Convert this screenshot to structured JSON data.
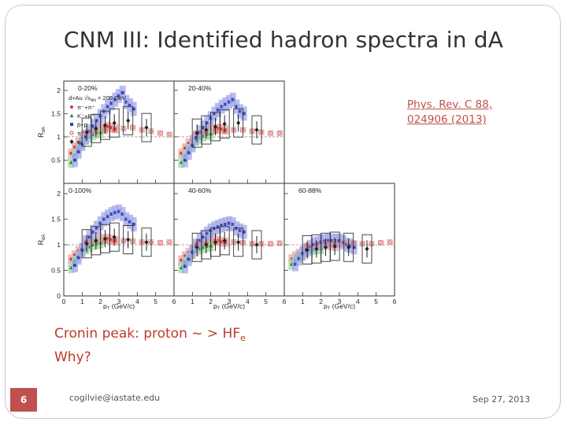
{
  "slide": {
    "title": "CNM III:  Identified hadron spectra in dA",
    "reference": [
      "Phys. Rev. C 88,",
      "024906 (2013)"
    ],
    "caption_line1_prefix": "Cronin peak: proton ~ > HF",
    "caption_line1_sub": "e",
    "caption_line2": "Why?",
    "page_number": "6",
    "email": "cogilvie@iastate.edu",
    "date": "Sep 27, 2013"
  },
  "figure": {
    "y_axis_label": "R",
    "y_axis_label_sub": "dA",
    "x_axis_label": "p",
    "x_axis_label_sub": "T",
    "x_axis_unit": "(GeV/c)",
    "y_ticks": [
      "0",
      "0.5",
      "1",
      "1.5",
      "2"
    ],
    "x_ticks": [
      "0",
      "1",
      "2",
      "3",
      "4",
      "5",
      "6"
    ],
    "panels": [
      "0-20%",
      "20-40%",
      "0-100%",
      "40-60%",
      "60-88%"
    ],
    "system_label": "d+Au",
    "energy_label": "√s",
    "energy_sub": "NN",
    "energy_value": "= 200 GeV",
    "legend": [
      "π⁻+π⁺",
      "K⁻+K⁺",
      "p̄+p",
      "π⁰",
      "φ"
    ],
    "colors": {
      "pion": "#e03030",
      "kaon": "#2e8b3a",
      "proton": "#3545b5",
      "pi0": "#e23d3d",
      "phi": "#222222",
      "pion_band": "#f3a9a9",
      "kaon_band": "#a8dba8",
      "proton_band": "#a3a8e8",
      "pi0_box": "#d48a8a",
      "accent": "#c0504d"
    }
  },
  "chart_data": {
    "type": "scatter",
    "xlabel": "pT (GeV/c)",
    "ylabel": "RdA",
    "xlim": [
      0,
      6
    ],
    "ylim": [
      0,
      2.2
    ],
    "panels": [
      {
        "name": "0-20%",
        "series": [
          {
            "name": "π⁻+π⁺",
            "x": [
              0.4,
              0.6,
              0.8,
              1.0,
              1.2,
              1.4,
              1.6,
              1.8,
              2.0,
              2.2,
              2.4,
              2.6,
              2.8
            ],
            "values": [
              0.65,
              0.78,
              0.88,
              0.96,
              1.02,
              1.07,
              1.12,
              1.15,
              1.18,
              1.2,
              1.22,
              1.2,
              1.18
            ]
          },
          {
            "name": "K⁻+K⁺",
            "x": [
              0.4,
              0.6,
              0.8,
              1.0,
              1.2,
              1.4,
              1.6,
              1.8,
              2.0
            ],
            "values": [
              0.45,
              0.62,
              0.75,
              0.86,
              0.94,
              1.0,
              1.05,
              1.08,
              1.1
            ]
          },
          {
            "name": "p̄+p",
            "x": [
              0.6,
              0.8,
              1.0,
              1.2,
              1.4,
              1.6,
              1.8,
              2.0,
              2.2,
              2.4,
              2.6,
              2.8,
              3.0,
              3.2,
              3.4,
              3.6,
              3.8
            ],
            "values": [
              0.5,
              0.68,
              0.85,
              1.0,
              1.12,
              1.23,
              1.35,
              1.45,
              1.55,
              1.65,
              1.72,
              1.8,
              1.88,
              1.95,
              1.75,
              1.68,
              1.6
            ]
          },
          {
            "name": "π⁰",
            "x": [
              1.25,
              1.75,
              2.25,
              2.75,
              3.25,
              3.75,
              4.25,
              4.75,
              5.25,
              5.75
            ],
            "values": [
              1.1,
              1.12,
              1.13,
              1.15,
              1.18,
              1.2,
              1.15,
              1.12,
              1.08,
              1.05
            ]
          },
          {
            "name": "φ",
            "x": [
              1.25,
              1.75,
              2.25,
              2.75,
              3.5,
              4.5
            ],
            "values": [
              1.1,
              1.18,
              1.25,
              1.3,
              1.35,
              1.2
            ]
          }
        ]
      },
      {
        "name": "20-40%",
        "series": [
          {
            "name": "π⁻+π⁺",
            "x": [
              0.4,
              0.6,
              0.8,
              1.0,
              1.2,
              1.4,
              1.6,
              1.8,
              2.0,
              2.2,
              2.4,
              2.6,
              2.8
            ],
            "values": [
              0.65,
              0.76,
              0.86,
              0.94,
              1.0,
              1.05,
              1.08,
              1.12,
              1.15,
              1.17,
              1.18,
              1.17,
              1.15
            ]
          },
          {
            "name": "K⁻+K⁺",
            "x": [
              0.4,
              0.6,
              0.8,
              1.0,
              1.2,
              1.4,
              1.6,
              1.8,
              2.0
            ],
            "values": [
              0.45,
              0.6,
              0.73,
              0.84,
              0.92,
              0.98,
              1.02,
              1.05,
              1.07
            ]
          },
          {
            "name": "p̄+p",
            "x": [
              0.6,
              0.8,
              1.0,
              1.2,
              1.4,
              1.6,
              1.8,
              2.0,
              2.2,
              2.4,
              2.6,
              2.8,
              3.0,
              3.2,
              3.4,
              3.6,
              3.8
            ],
            "values": [
              0.5,
              0.66,
              0.82,
              0.98,
              1.1,
              1.2,
              1.3,
              1.4,
              1.5,
              1.58,
              1.65,
              1.7,
              1.75,
              1.8,
              1.65,
              1.55,
              1.5
            ]
          },
          {
            "name": "π⁰",
            "x": [
              1.25,
              1.75,
              2.25,
              2.75,
              3.25,
              3.75,
              4.25,
              4.75,
              5.25,
              5.75
            ],
            "values": [
              1.08,
              1.1,
              1.12,
              1.13,
              1.15,
              1.15,
              1.12,
              1.1,
              1.08,
              1.08
            ]
          },
          {
            "name": "φ",
            "x": [
              1.25,
              1.75,
              2.25,
              2.75,
              3.5,
              4.5
            ],
            "values": [
              1.08,
              1.15,
              1.22,
              1.28,
              1.3,
              1.15
            ]
          }
        ]
      },
      {
        "name": "0-100%",
        "series": [
          {
            "name": "π⁻+π⁺",
            "x": [
              0.4,
              0.6,
              0.8,
              1.0,
              1.2,
              1.4,
              1.6,
              1.8,
              2.0,
              2.2,
              2.4,
              2.6,
              2.8
            ],
            "values": [
              0.72,
              0.8,
              0.88,
              0.93,
              0.98,
              1.02,
              1.05,
              1.08,
              1.1,
              1.12,
              1.12,
              1.1,
              1.08
            ]
          },
          {
            "name": "K⁻+K⁺",
            "x": [
              0.4,
              0.6,
              0.8,
              1.0,
              1.2,
              1.4,
              1.6,
              1.8,
              2.0
            ],
            "values": [
              0.55,
              0.68,
              0.78,
              0.86,
              0.92,
              0.96,
              1.0,
              1.02,
              1.04
            ]
          },
          {
            "name": "p̄+p",
            "x": [
              0.6,
              0.8,
              1.0,
              1.2,
              1.4,
              1.6,
              1.8,
              2.0,
              2.2,
              2.4,
              2.6,
              2.8,
              3.0,
              3.2,
              3.4,
              3.6,
              3.8
            ],
            "values": [
              0.6,
              0.75,
              0.9,
              1.05,
              1.15,
              1.25,
              1.33,
              1.42,
              1.5,
              1.55,
              1.6,
              1.63,
              1.65,
              1.6,
              1.5,
              1.45,
              1.4
            ]
          },
          {
            "name": "π⁰",
            "x": [
              1.25,
              1.75,
              2.25,
              2.75,
              3.25,
              3.75,
              4.25,
              4.75,
              5.25,
              5.75
            ],
            "values": [
              1.05,
              1.06,
              1.07,
              1.08,
              1.08,
              1.07,
              1.05,
              1.05,
              1.04,
              1.05
            ]
          },
          {
            "name": "φ",
            "x": [
              1.25,
              1.75,
              2.25,
              2.75,
              3.5,
              4.5
            ],
            "values": [
              1.02,
              1.08,
              1.12,
              1.15,
              1.1,
              1.05
            ]
          }
        ]
      },
      {
        "name": "40-60%",
        "series": [
          {
            "name": "π⁻+π⁺",
            "x": [
              0.4,
              0.6,
              0.8,
              1.0,
              1.2,
              1.4,
              1.6,
              1.8,
              2.0,
              2.2,
              2.4,
              2.6,
              2.8
            ],
            "values": [
              0.7,
              0.78,
              0.85,
              0.9,
              0.95,
              0.98,
              1.02,
              1.05,
              1.07,
              1.08,
              1.08,
              1.06,
              1.05
            ]
          },
          {
            "name": "K⁻+K⁺",
            "x": [
              0.4,
              0.6,
              0.8,
              1.0,
              1.2,
              1.4,
              1.6,
              1.8,
              2.0
            ],
            "values": [
              0.55,
              0.66,
              0.75,
              0.83,
              0.88,
              0.92,
              0.95,
              0.97,
              0.98
            ]
          },
          {
            "name": "p̄+p",
            "x": [
              0.6,
              0.8,
              1.0,
              1.2,
              1.4,
              1.6,
              1.8,
              2.0,
              2.2,
              2.4,
              2.6,
              2.8,
              3.0,
              3.2,
              3.4,
              3.6,
              3.8
            ],
            "values": [
              0.58,
              0.72,
              0.86,
              0.98,
              1.08,
              1.15,
              1.22,
              1.28,
              1.32,
              1.35,
              1.38,
              1.4,
              1.42,
              1.4,
              1.32,
              1.28,
              1.25
            ]
          },
          {
            "name": "π⁰",
            "x": [
              1.25,
              1.75,
              2.25,
              2.75,
              3.25,
              3.75,
              4.25,
              4.75,
              5.25,
              5.75
            ],
            "values": [
              1.02,
              1.03,
              1.04,
              1.05,
              1.05,
              1.04,
              1.02,
              1.02,
              1.02,
              1.03
            ]
          },
          {
            "name": "φ",
            "x": [
              1.25,
              1.75,
              2.25,
              2.75,
              3.5,
              4.5
            ],
            "values": [
              0.95,
              1.0,
              1.05,
              1.08,
              1.05,
              1.0
            ]
          }
        ]
      },
      {
        "name": "60-88%",
        "series": [
          {
            "name": "π⁻+π⁺",
            "x": [
              0.4,
              0.6,
              0.8,
              1.0,
              1.2,
              1.4,
              1.6,
              1.8,
              2.0,
              2.2,
              2.4,
              2.6,
              2.8
            ],
            "values": [
              0.72,
              0.78,
              0.83,
              0.88,
              0.91,
              0.94,
              0.96,
              0.98,
              1.0,
              1.0,
              0.99,
              0.98,
              0.97
            ]
          },
          {
            "name": "K⁻+K⁺",
            "x": [
              0.4,
              0.6,
              0.8,
              1.0,
              1.2,
              1.4,
              1.6,
              1.8,
              2.0
            ],
            "values": [
              0.62,
              0.7,
              0.77,
              0.82,
              0.86,
              0.89,
              0.91,
              0.92,
              0.93
            ]
          },
          {
            "name": "p̄+p",
            "x": [
              0.6,
              0.8,
              1.0,
              1.2,
              1.4,
              1.6,
              1.8,
              2.0,
              2.2,
              2.4,
              2.6,
              2.8,
              3.0,
              3.2,
              3.4,
              3.6,
              3.8
            ],
            "values": [
              0.62,
              0.73,
              0.83,
              0.9,
              0.96,
              1.0,
              1.03,
              1.05,
              1.07,
              1.08,
              1.08,
              1.08,
              1.08,
              1.05,
              1.0,
              0.98,
              0.95
            ]
          },
          {
            "name": "π⁰",
            "x": [
              1.25,
              1.75,
              2.25,
              2.75,
              3.25,
              3.75,
              4.25,
              4.75,
              5.25,
              5.75
            ],
            "values": [
              0.98,
              1.0,
              1.02,
              1.03,
              1.03,
              1.03,
              1.02,
              1.02,
              1.04,
              1.05
            ]
          },
          {
            "name": "φ",
            "x": [
              1.25,
              1.75,
              2.25,
              2.75,
              3.5,
              4.5
            ],
            "values": [
              0.9,
              0.92,
              0.95,
              0.97,
              0.95,
              0.92
            ]
          }
        ]
      }
    ]
  }
}
